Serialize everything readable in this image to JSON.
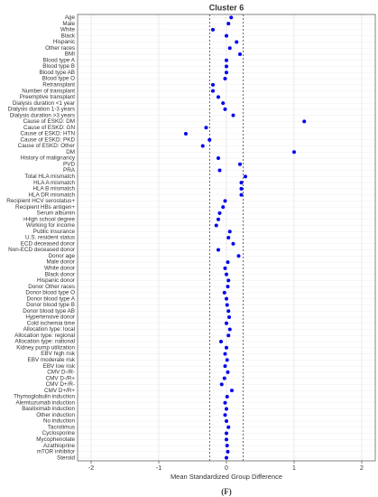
{
  "chart_data": {
    "type": "dot",
    "title": "Cluster 6",
    "x_label": "Mean Standardized Group Difference",
    "caption": "(F)",
    "categories": [
      "Age",
      "Male",
      "White",
      "Black",
      "Hispanic",
      "Other races",
      "BMI",
      "Blood type A",
      "Blood type B",
      "Blood type AB",
      "Blood type O",
      "Retransplant",
      "Number of transplant",
      "Preemptive transplant",
      "Dialysis duration <1 year",
      "Dialysis duration 1-3 years",
      "Dialysis duration >3 years",
      "Cause of ESKD: DM",
      "Cause of ESKD: GN",
      "Cause of ESKD: HTN",
      "Cause of ESKD: PKD",
      "Cause of ESKD: Other",
      "DM",
      "History of malignancy",
      "PVD",
      "PRA",
      "Total HLA mismatch",
      "HLA A mismatch",
      "HLA B mismatch",
      "HLA DR mismatch",
      "Recipient HCV serostatus+",
      "Recipient HBs antigen+",
      "Serum albumin",
      ">High school degree",
      "Working for income",
      "Public insurance",
      "U.S. resident status",
      "ECD deceased donor",
      "Non-ECD deceased donor",
      "Donor age",
      "Male donor",
      "White donor",
      "Black donor",
      "Hispanic donor",
      "Donor Other races",
      "Donor blood type O",
      "Donor blood type A",
      "Donor blood type B",
      "Donor blood type AB",
      "Hypertensive donor",
      "Cold ischemia time",
      "Allocation type: local",
      "Allocation type: regional",
      "Allocation type: national",
      "Kidney pump utilization",
      "EBV high risk",
      "EBV moderate risk",
      "EBV low risk",
      "CMV D-/R-",
      "CMV D-/R+",
      "CMV D+/R-",
      "CMV D+/R+",
      "Thymoglobulin induction",
      "Alemtuzumab induction",
      "Basiliximab induction",
      "Other induction",
      "No induction",
      "Tacrolimus",
      "Cyclosporine",
      "Mycophenolate",
      "Azathioprine",
      "mTOR inhibitor",
      "Steroid"
    ],
    "values": [
      0.07,
      0.03,
      -0.2,
      0.0,
      0.15,
      0.05,
      0.2,
      0.0,
      0.0,
      0.0,
      -0.02,
      -0.2,
      -0.2,
      -0.12,
      -0.05,
      -0.02,
      0.1,
      1.15,
      -0.3,
      -0.6,
      -0.25,
      -0.35,
      1.0,
      -0.12,
      0.2,
      -0.1,
      0.28,
      0.22,
      0.22,
      0.22,
      -0.02,
      -0.05,
      -0.1,
      -0.12,
      -0.15,
      0.05,
      0.03,
      0.1,
      -0.12,
      0.18,
      0.02,
      -0.02,
      0.0,
      0.03,
      0.02,
      -0.03,
      0.0,
      0.01,
      0.03,
      0.04,
      0.0,
      0.05,
      0.03,
      -0.08,
      0.0,
      -0.02,
      0.01,
      -0.02,
      0.02,
      -0.03,
      -0.07,
      0.08,
      0.01,
      -0.02,
      0.0,
      -0.02,
      0.0,
      0.03,
      0.0,
      0.0,
      0.01,
      0.02,
      0.0
    ],
    "color": "#0000ee",
    "reference_lines": [
      -0.25,
      0.25
    ],
    "xlim": [
      -2.2,
      2.2
    ],
    "xticks": [
      -2,
      -1,
      0,
      1,
      2
    ],
    "grid": true
  }
}
